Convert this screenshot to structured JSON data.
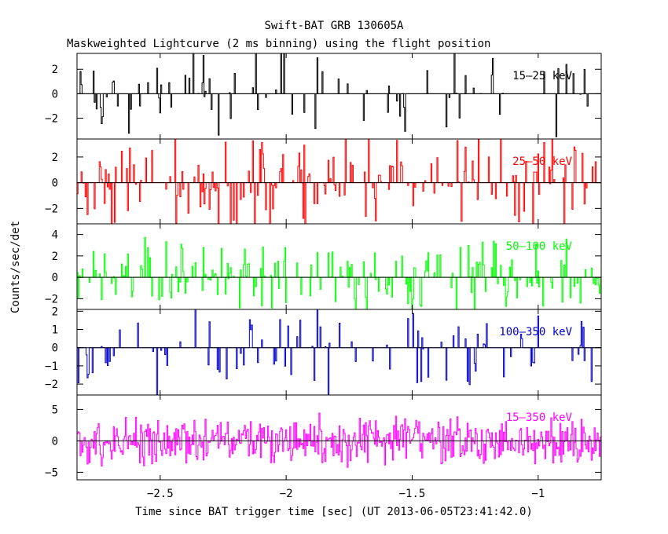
{
  "figure": {
    "title": "Swift-BAT GRB 130605A",
    "subtitle": "Maskweighted Lightcurve (2 ms binning) using the flight position",
    "xlabel": "Time since BAT trigger time [sec] (UT 2013-06-05T23:41:42.0)",
    "ylabel": "Counts/sec/det"
  },
  "chart_data": {
    "type": "line",
    "style": "histogram-step",
    "xlim": [
      -2.83,
      -0.75
    ],
    "xticks": [
      -2.5,
      -2,
      -1.5,
      -1
    ],
    "xtick_labels": [
      "−2.5",
      "−2",
      "−1.5",
      "−1"
    ],
    "bin_width_s": 0.002,
    "series": [
      {
        "name": "15–25 keV",
        "color": "#000000",
        "ylim": [
          -3.7,
          3.3
        ],
        "yticks": [
          -2,
          0,
          2
        ],
        "ytick_labels": [
          "−2",
          "0",
          "2"
        ],
        "signal_active_fraction": 0.18,
        "signal_amplitude": 3.4,
        "seed": 11
      },
      {
        "name": "25–50 keV",
        "color": "#ff0000",
        "ylim": [
          -3.2,
          3.4
        ],
        "yticks": [
          -2,
          0,
          2
        ],
        "ytick_labels": [
          "−2",
          "0",
          "2"
        ],
        "signal_active_fraction": 0.3,
        "signal_amplitude": 3.3,
        "seed": 23
      },
      {
        "name": "50–100 keV",
        "color": "#00ff00",
        "ylim": [
          -3.0,
          5.0
        ],
        "yticks": [
          -2,
          0,
          2,
          4
        ],
        "ytick_labels": [
          "−2",
          "0",
          "2",
          "4"
        ],
        "signal_active_fraction": 0.35,
        "signal_amplitude": 3.0,
        "seed": 37
      },
      {
        "name": "100–350 keV",
        "color": "#0000cc",
        "ylim": [
          -2.6,
          2.1
        ],
        "yticks": [
          -2,
          -1,
          0,
          1,
          2
        ],
        "ytick_labels": [
          "−2",
          "−1",
          "0",
          "1",
          "2"
        ],
        "signal_active_fraction": 0.15,
        "signal_amplitude": 2.4,
        "seed": 53
      },
      {
        "name": "15–350 keV",
        "color": "#ff00ff",
        "ylim": [
          -6.2,
          7.3
        ],
        "yticks": [
          -5,
          0,
          5
        ],
        "ytick_labels": [
          "−5",
          "0",
          "5"
        ],
        "signal_active_fraction": 0.95,
        "signal_amplitude": 3.2,
        "seed": 71
      }
    ],
    "grid": false,
    "legend": "inline-right"
  }
}
